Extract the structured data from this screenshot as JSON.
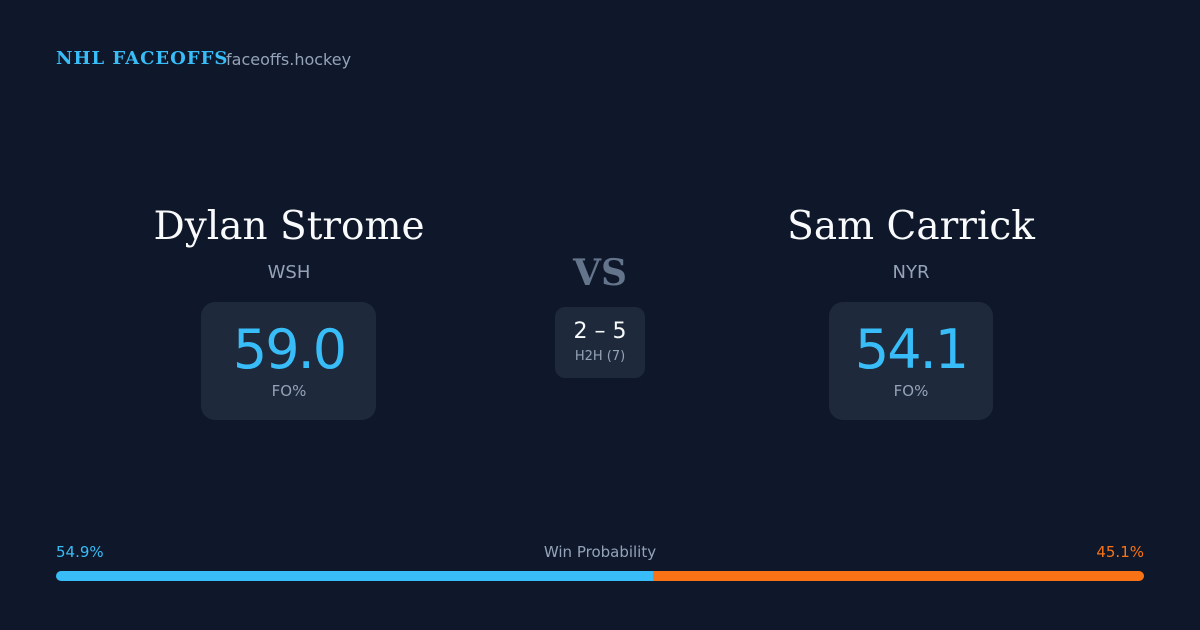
{
  "header": {
    "brand": "NHL FACEOFFS",
    "site": "faceoffs.hockey"
  },
  "players": [
    {
      "name": "Dylan Strome",
      "team": "WSH",
      "stat": "59.0",
      "stat_label": "FO%"
    },
    {
      "name": "Sam Carrick",
      "team": "NYR",
      "stat": "54.1",
      "stat_label": "FO%"
    }
  ],
  "versus": {
    "label": "VS",
    "score": "2 – 5",
    "caption": "H2H (7)"
  },
  "win_probability": {
    "label": "Win Probability",
    "home": {
      "value": 54.9,
      "label": "54.9%",
      "color": "#38bdf8"
    },
    "away": {
      "value": 45.1,
      "label": "45.1%",
      "color": "#f97316"
    }
  }
}
